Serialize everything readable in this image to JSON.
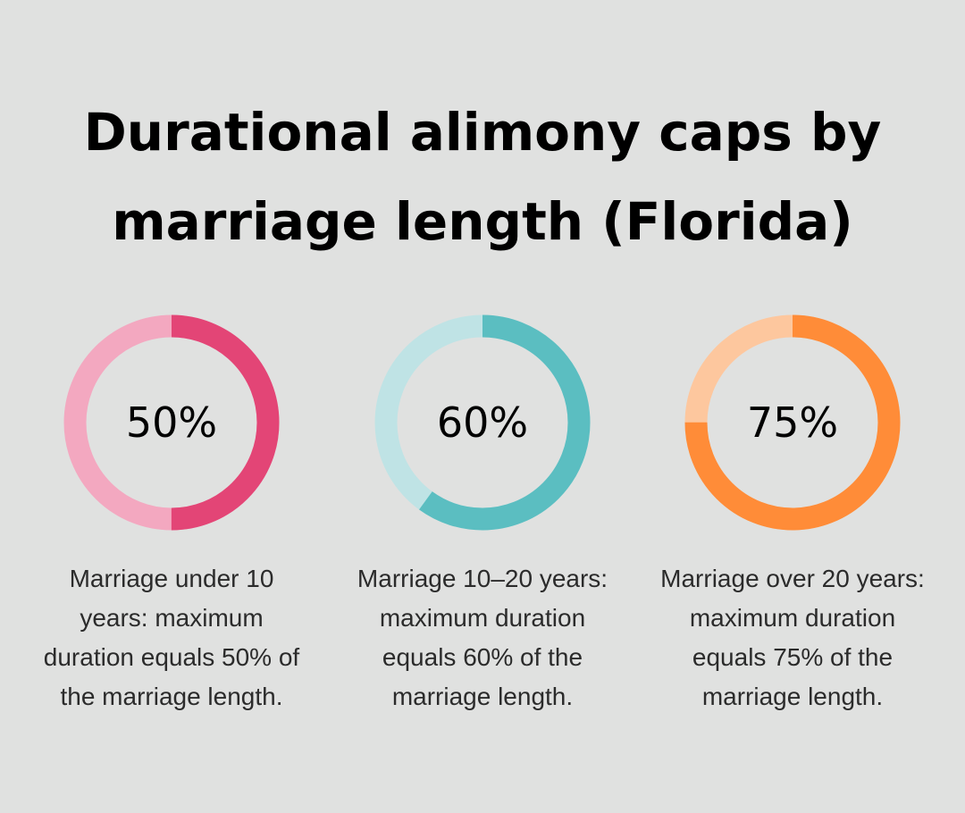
{
  "title_lines": [
    "Durational alimony caps by",
    "marriage length (Florida)"
  ],
  "chart_data": [
    {
      "type": "pie",
      "variant": "donut",
      "value": 50,
      "label": "50%",
      "description": "Marriage under 10 years: maximum duration equals 50% of the marriage length.",
      "colors": {
        "value": "#e34576",
        "rest": "#f3a8c0"
      }
    },
    {
      "type": "pie",
      "variant": "donut",
      "value": 60,
      "label": "60%",
      "description": "Marriage 10–20 years: maximum duration equals 60% of the marriage length.",
      "colors": {
        "value": "#5bbec1",
        "rest": "#bfe3e5"
      }
    },
    {
      "type": "pie",
      "variant": "donut",
      "value": 75,
      "label": "75%",
      "description": "Marriage over 20 years: maximum duration equals 75% of the marriage length.",
      "colors": {
        "value": "#ff8c38",
        "rest": "#fdc79e"
      }
    }
  ]
}
